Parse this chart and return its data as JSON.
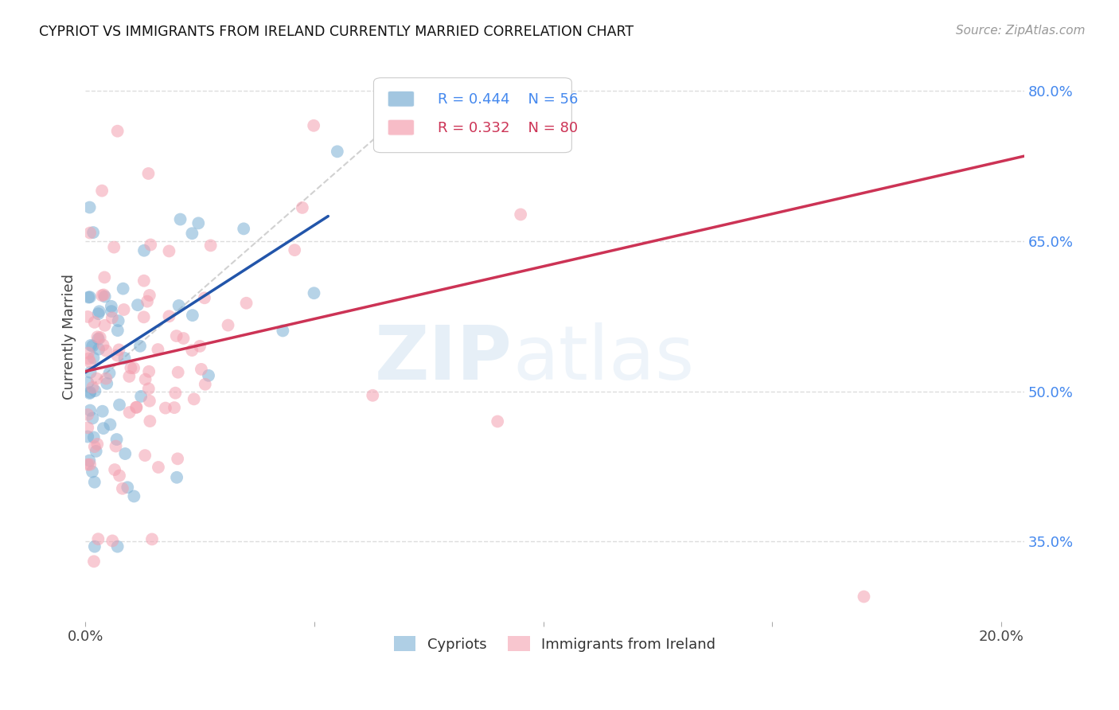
{
  "title": "CYPRIOT VS IMMIGRANTS FROM IRELAND CURRENTLY MARRIED CORRELATION CHART",
  "source": "Source: ZipAtlas.com",
  "ylabel": "Currently Married",
  "xlim": [
    0.0,
    0.205
  ],
  "ylim": [
    0.27,
    0.84
  ],
  "xticks": [
    0.0,
    0.05,
    0.1,
    0.15,
    0.2
  ],
  "xticklabels": [
    "0.0%",
    "",
    "",
    "",
    "20.0%"
  ],
  "ytick_right_values": [
    0.35,
    0.5,
    0.65,
    0.8
  ],
  "ytick_right_labels": [
    "35.0%",
    "50.0%",
    "65.0%",
    "80.0%"
  ],
  "color_blue": "#7BAFD4",
  "color_pink": "#F4A0B0",
  "color_trendline_blue": "#2255AA",
  "color_trendline_pink": "#CC3355",
  "color_refline": "#CCCCCC",
  "color_title": "#111111",
  "color_source": "#999999",
  "color_axis_right": "#4488EE",
  "color_legend_R1": "#4488EE",
  "color_legend_N1": "#4488EE",
  "color_legend_R2": "#CC3355",
  "color_legend_N2": "#CC3355",
  "background_color": "#FFFFFF",
  "grid_color": "#DDDDDD",
  "blue_trendline_x": [
    0.0,
    0.053
  ],
  "blue_trendline_y": [
    0.519,
    0.675
  ],
  "pink_trendline_x": [
    0.0,
    0.205
  ],
  "pink_trendline_y": [
    0.52,
    0.735
  ],
  "refline_x": [
    0.0,
    0.075
  ],
  "refline_y": [
    0.5,
    0.8
  ],
  "watermark_zip_color": "#C8DDEF",
  "watermark_atlas_color": "#C8DDEF"
}
